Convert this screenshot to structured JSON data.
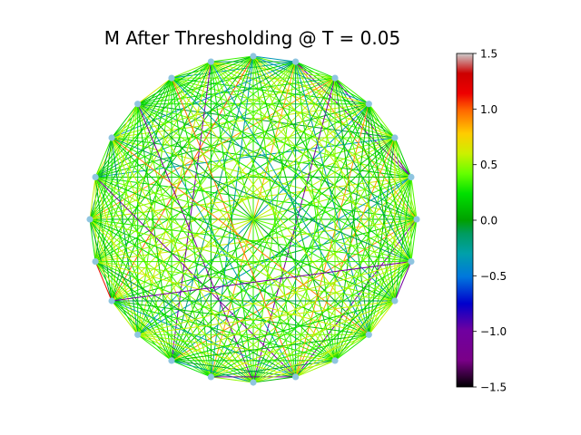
{
  "chart_data": {
    "type": "network",
    "title": "M After Thresholding @ T = 0.05",
    "node_count": 24,
    "node_color": "#8fc5e0",
    "layout": "circular",
    "threshold": 0.05,
    "edges_drawn": "all pairs with |weight| above threshold (nearly complete graph)",
    "edge_weight_distribution": "mostly 0.1 to 0.6, a few strongly negative (~-1.0) and strongly positive (~0.9 to 1.1)",
    "colorbar": {
      "cmap": "nipy_spectral-like",
      "range": [
        -1.5,
        1.5
      ],
      "tick_labels": [
        "1.5",
        "1.0",
        "0.5",
        "0.0",
        "−0.5",
        "−1.0",
        "−1.5"
      ],
      "tick_values": [
        1.5,
        1.0,
        0.5,
        0.0,
        -0.5,
        -1.0,
        -1.5
      ]
    },
    "axes_visible": false
  }
}
